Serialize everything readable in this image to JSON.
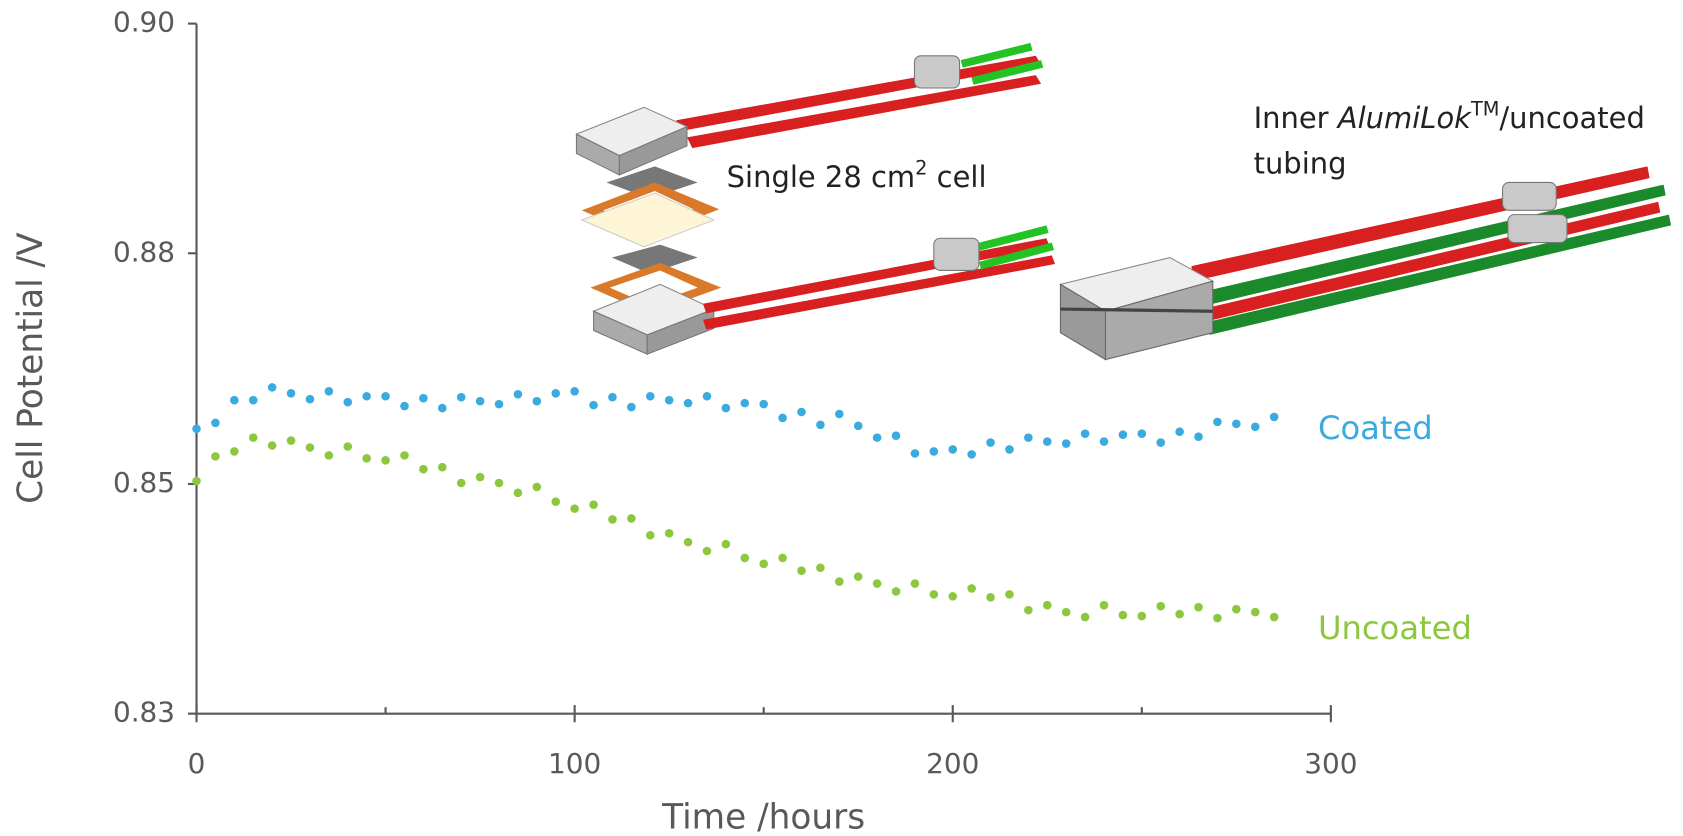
{
  "chart_data": {
    "type": "scatter",
    "xlabel": "Time /hours",
    "ylabel": "Cell Potential /V",
    "xlim": [
      0,
      300
    ],
    "xticks": [
      0,
      100,
      200,
      300
    ],
    "xminorticks": [
      50,
      150,
      250
    ],
    "ylim": [
      0.83,
      0.9
    ],
    "yticks": [
      0.83,
      {
        "value": 0.8533,
        "label": "0.85"
      },
      {
        "value": 0.8767,
        "label": "0.88"
      },
      {
        "value": 0.9,
        "label": "0.90"
      }
    ],
    "x": [
      0,
      5,
      10,
      15,
      20,
      25,
      30,
      35,
      40,
      45,
      50,
      55,
      60,
      65,
      70,
      75,
      80,
      85,
      90,
      95,
      100,
      105,
      110,
      115,
      120,
      125,
      130,
      135,
      140,
      145,
      150,
      155,
      160,
      165,
      170,
      175,
      180,
      185,
      190,
      195,
      200,
      205,
      210,
      215,
      220,
      225,
      230,
      235,
      240,
      245,
      250,
      255,
      260,
      265,
      270,
      275,
      280,
      285
    ],
    "series": [
      {
        "name": "Coated",
        "color": "#3aabdf",
        "values": [
          0.8589,
          0.8595,
          0.8618,
          0.8618,
          0.8631,
          0.8625,
          0.8619,
          0.8627,
          0.8616,
          0.8622,
          0.8622,
          0.8612,
          0.862,
          0.861,
          0.8621,
          0.8617,
          0.8614,
          0.8624,
          0.8617,
          0.8625,
          0.8627,
          0.8613,
          0.8621,
          0.8611,
          0.8622,
          0.8618,
          0.8615,
          0.8622,
          0.861,
          0.8615,
          0.8614,
          0.86,
          0.8606,
          0.8593,
          0.8604,
          0.8592,
          0.858,
          0.8582,
          0.8564,
          0.8566,
          0.8568,
          0.8563,
          0.8575,
          0.8568,
          0.858,
          0.8576,
          0.8574,
          0.8584,
          0.8576,
          0.8583,
          0.8584,
          0.8575,
          0.8586,
          0.8581,
          0.8596,
          0.8594,
          0.8591,
          0.8601
        ]
      },
      {
        "name": "Uncoated",
        "color": "#8dc63f",
        "values": [
          0.8536,
          0.8561,
          0.8566,
          0.858,
          0.8572,
          0.8577,
          0.857,
          0.8562,
          0.8571,
          0.8559,
          0.8557,
          0.8562,
          0.8548,
          0.855,
          0.8534,
          0.854,
          0.8534,
          0.8524,
          0.853,
          0.8515,
          0.8508,
          0.8512,
          0.8497,
          0.8498,
          0.8481,
          0.8483,
          0.8474,
          0.8465,
          0.8472,
          0.8458,
          0.8452,
          0.8458,
          0.8445,
          0.8448,
          0.8434,
          0.8439,
          0.8432,
          0.8424,
          0.8432,
          0.8421,
          0.8419,
          0.8427,
          0.8418,
          0.8421,
          0.8405,
          0.841,
          0.8403,
          0.8398,
          0.841,
          0.84,
          0.8399,
          0.8409,
          0.8401,
          0.8408,
          0.8397,
          0.8406,
          0.8403,
          0.8398
        ]
      }
    ],
    "annotations": [
      {
        "text": "Single 28 cm",
        "sup": "2",
        "after": " cell"
      },
      {
        "text": "Inner ",
        "italic": "AlumiLok",
        "sup": "TM",
        "after": "/uncoated",
        "line2": "tubing"
      }
    ]
  }
}
